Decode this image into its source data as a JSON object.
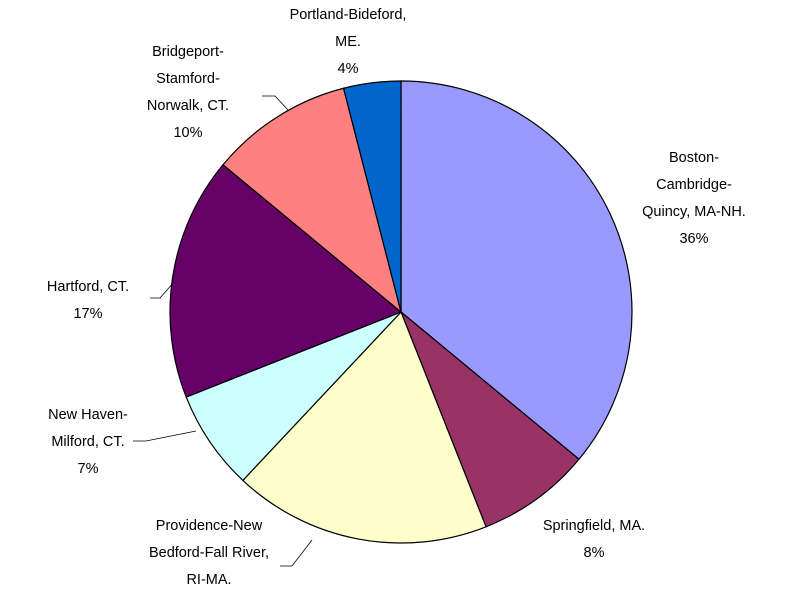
{
  "chart_data": {
    "type": "pie",
    "categories": [
      "Boston-Cambridge-\nQuincy, MA-NH.",
      "Springfield, MA.",
      "Providence-New\nBedford-Fall River,\nRI-MA.",
      "New Haven-\nMilford, CT.",
      "Hartford, CT.",
      "Bridgeport-\nStamford-\nNorwalk, CT.",
      "Portland-Bideford,\nME."
    ],
    "values": [
      36,
      8,
      18,
      7,
      17,
      10,
      4
    ],
    "value_labels": [
      "36%",
      "8%",
      null,
      "7%",
      "17%",
      "10%",
      "4%"
    ],
    "colors": [
      "#9999ff",
      "#993366",
      "#ffffcc",
      "#ccffff",
      "#660066",
      "#ff8080",
      "#0066cc"
    ]
  }
}
